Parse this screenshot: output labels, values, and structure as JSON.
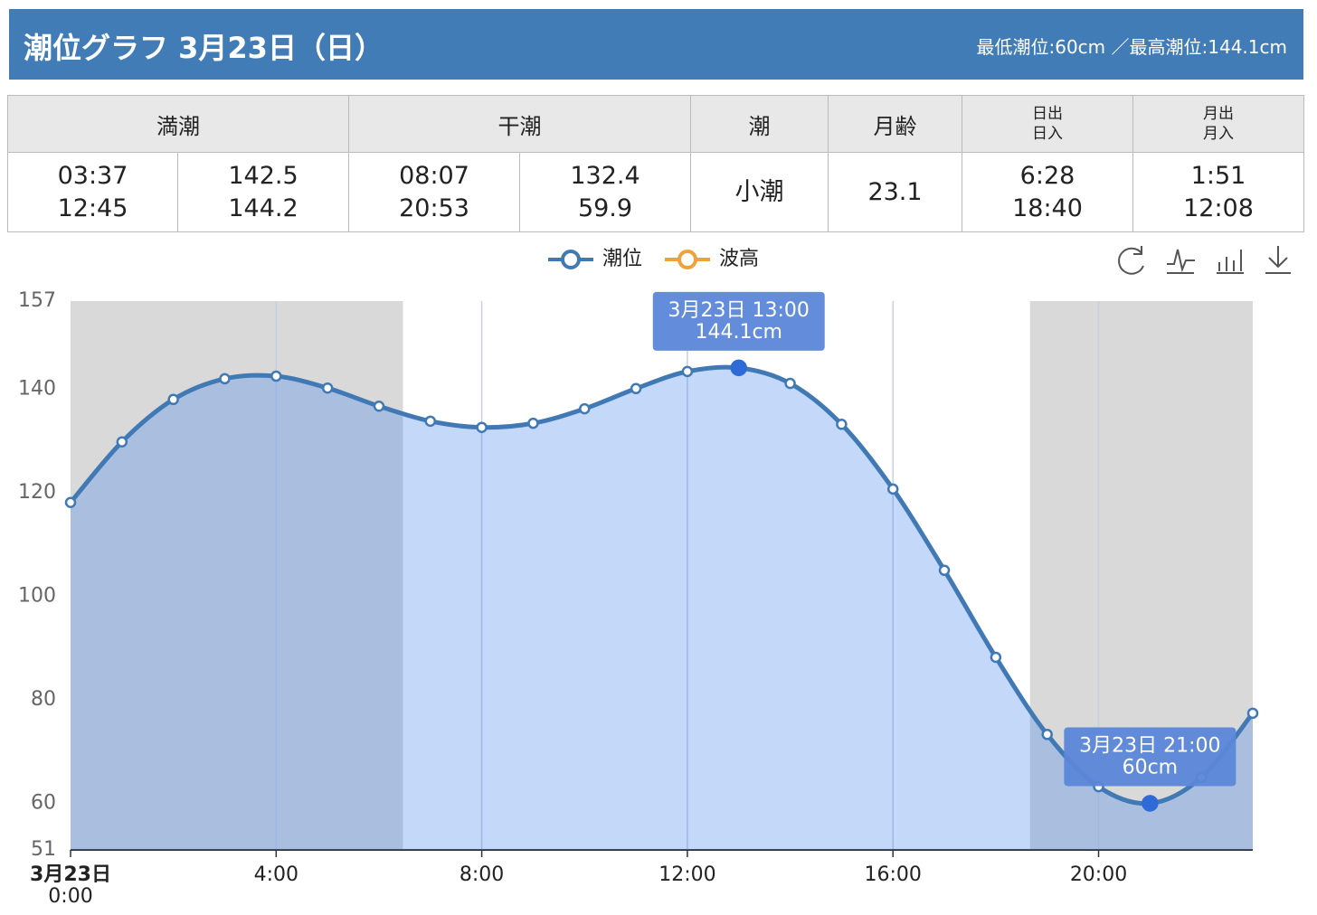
{
  "header": {
    "title": "潮位グラフ 3月23日（日）",
    "summary": "最低潮位:60cm ／最高潮位:144.1cm"
  },
  "table": {
    "header": [
      "満潮",
      "干潮",
      "潮",
      "月齢",
      [
        "日出",
        "日入"
      ],
      [
        "月出",
        "月入"
      ]
    ],
    "rows": [
      [
        [
          "03:37",
          "12:45"
        ],
        [
          "142.5",
          "144.2"
        ],
        [
          "08:07",
          "20:53"
        ],
        [
          "132.4",
          "59.9"
        ],
        [
          "小潮"
        ],
        [
          "23.1"
        ],
        [
          "6:28",
          "18:40"
        ],
        [
          "1:51",
          "12:08"
        ]
      ]
    ]
  },
  "chart_data": {
    "type": "line",
    "x": [
      0,
      1,
      2,
      3,
      4,
      5,
      6,
      7,
      8,
      9,
      10,
      11,
      12,
      13,
      14,
      15,
      16,
      17,
      18,
      19,
      20,
      21,
      22,
      23
    ],
    "series": [
      {
        "name": "潮位",
        "color": "#4179b5",
        "values": [
          118.1,
          129.8,
          138.0,
          142.0,
          142.5,
          140.2,
          136.7,
          133.8,
          132.6,
          133.4,
          136.2,
          140.1,
          143.4,
          144.1,
          141.1,
          133.2,
          120.7,
          105.0,
          88.2,
          73.3,
          63.2,
          60,
          65.0,
          77.4
        ]
      },
      {
        "name": "波高",
        "color": "#f0a23a",
        "values": [
          null,
          null,
          null,
          null,
          null,
          null,
          null,
          null,
          null,
          null,
          null,
          null,
          null,
          null,
          null,
          null,
          null,
          null,
          null,
          null,
          null,
          null,
          null,
          null
        ]
      }
    ],
    "xlim": [
      0,
      23
    ],
    "xticks": [
      {
        "value": 0,
        "label": "0:00"
      },
      {
        "value": 4,
        "label": "4:00"
      },
      {
        "value": 8,
        "label": "8:00"
      },
      {
        "value": 12,
        "label": "12:00"
      },
      {
        "value": 16,
        "label": "16:00"
      },
      {
        "value": 20,
        "label": "20:00"
      }
    ],
    "x_date_label": "3月23日",
    "ylim": [
      51,
      157
    ],
    "yticks": [
      51,
      60,
      80,
      100,
      120,
      140,
      157
    ],
    "grid": true,
    "tooltips": [
      {
        "x": 13,
        "title": "3月23日 13:00",
        "label": "144.1cm"
      },
      {
        "x": 21,
        "title": "3月23日 21:00",
        "label": "60cm"
      }
    ]
  }
}
